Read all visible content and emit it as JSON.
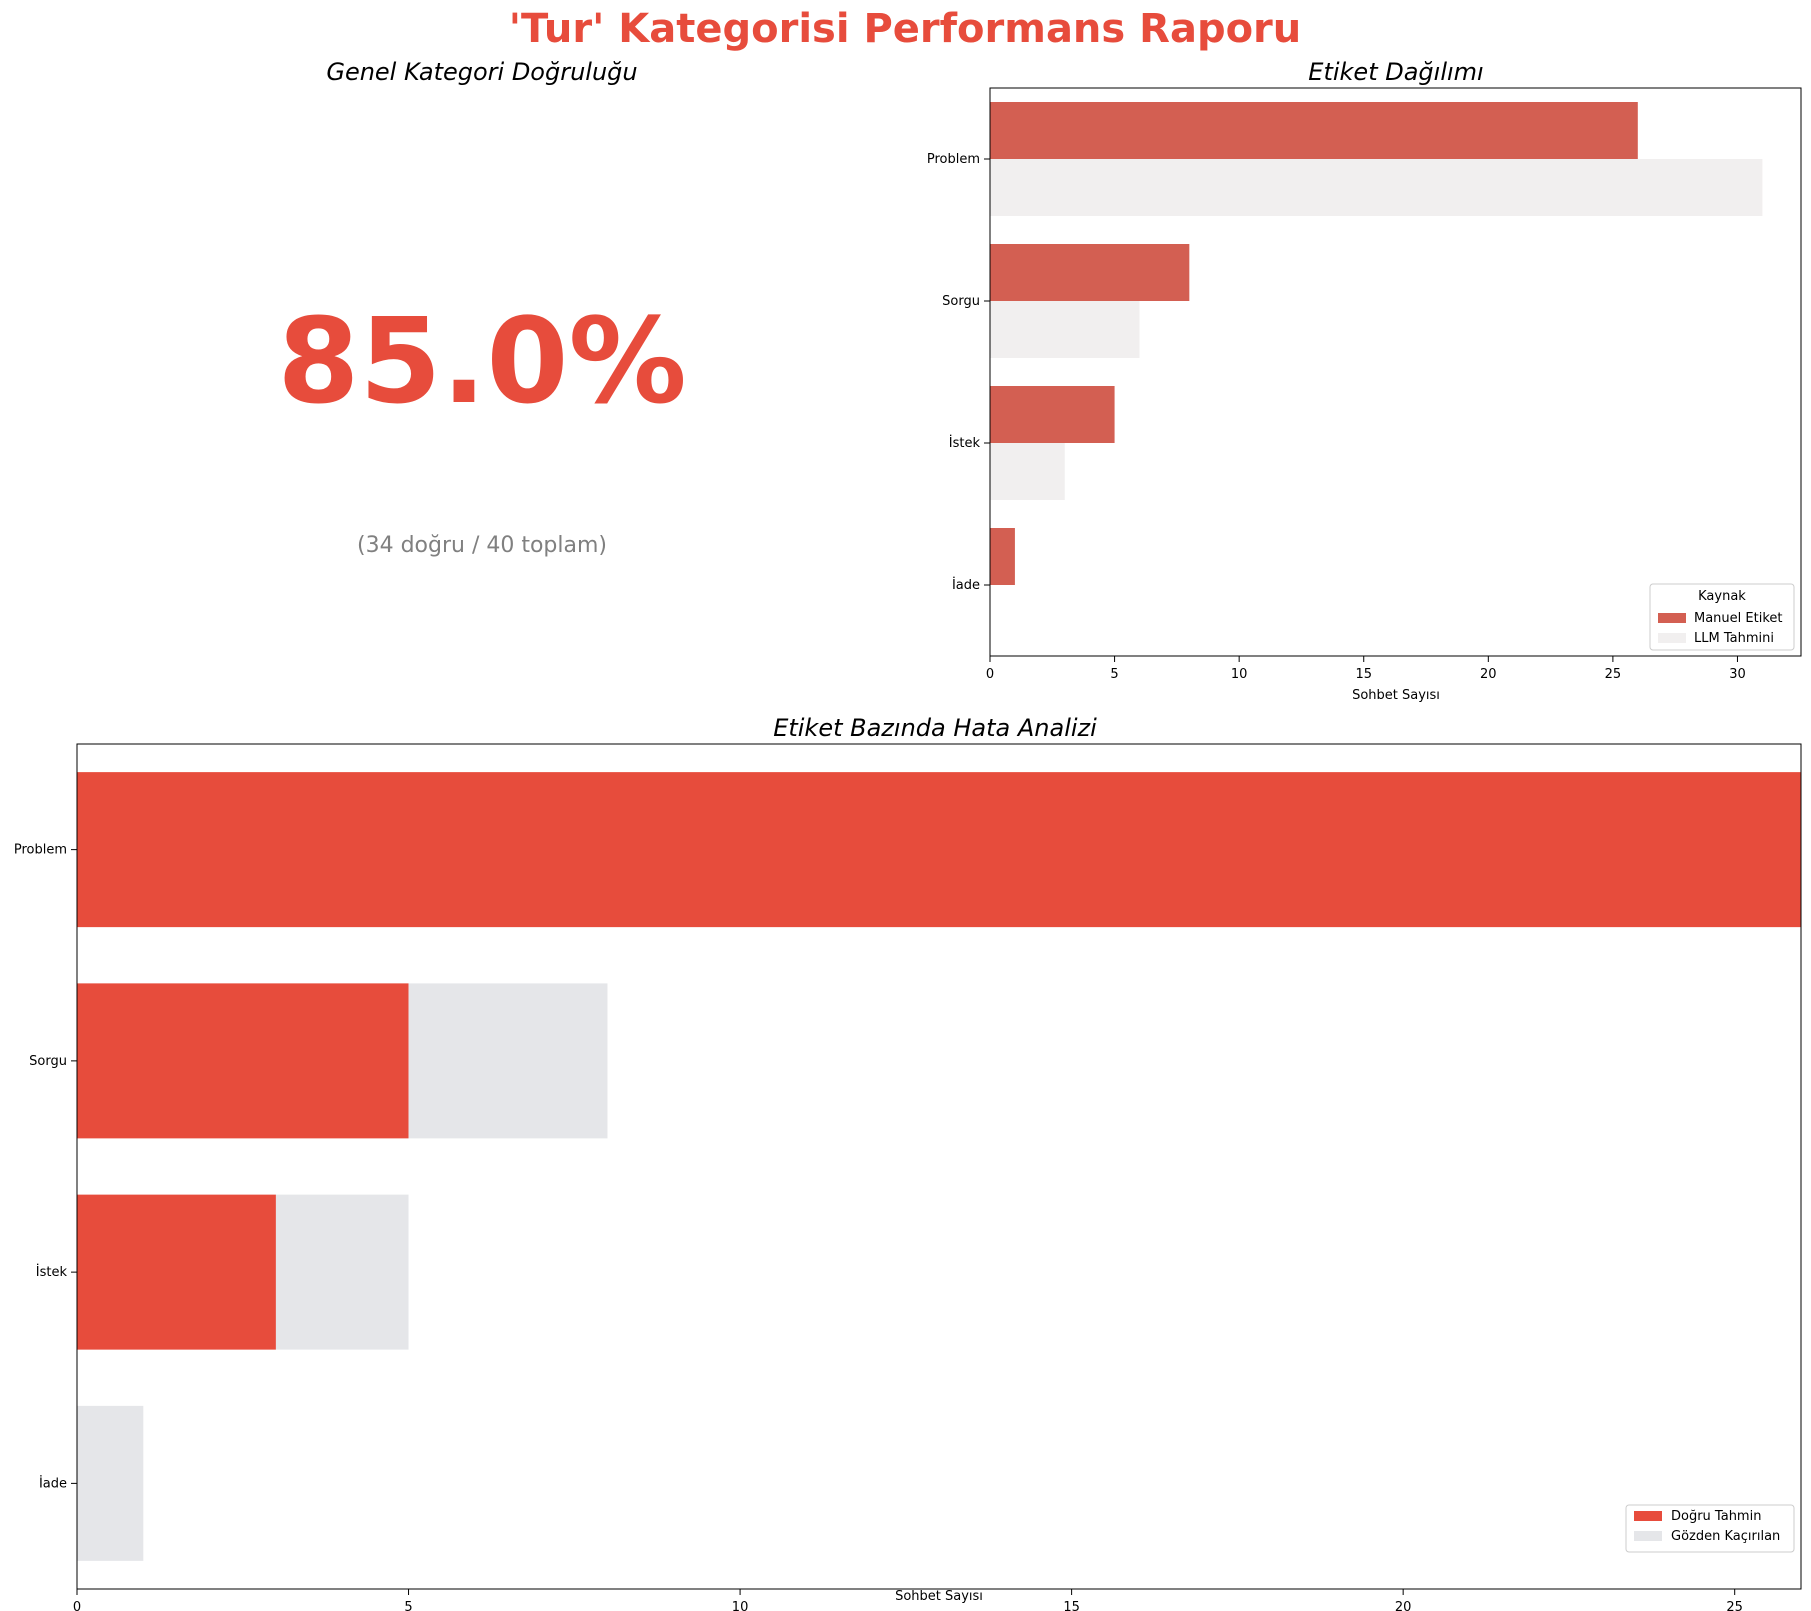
{
  "report_title": "'Tur' Kategorisi Performans Raporu",
  "accuracy_panel": {
    "title": "Genel Kategori Doğruluğu",
    "value_text": "85.0%",
    "detail_text": "(34 doğru / 40 toplam)"
  },
  "colors": {
    "title_red": "#e74c3c",
    "manual_bar": "#d35f52",
    "llm_bar": "#f1efef",
    "correct_bar": "#e74c3c",
    "missed_bar": "#e5e6e9",
    "detail_gray": "#808080"
  },
  "chart_data": [
    {
      "type": "bar",
      "orientation": "horizontal",
      "title": "Etiket Dağılımı",
      "categories": [
        "Problem",
        "Sorgu",
        "İstek",
        "İade"
      ],
      "series": [
        {
          "name": "Manuel Etiket",
          "values": [
            26,
            8,
            5,
            1
          ]
        },
        {
          "name": "LLM Tahmini",
          "values": [
            31,
            6,
            3,
            0
          ]
        }
      ],
      "xlabel": "Sohbet Sayısı",
      "ylabel": "",
      "xlim": [
        0,
        32.55
      ],
      "xticks": [
        0,
        5,
        10,
        15,
        20,
        25,
        30
      ],
      "legend": {
        "title": "Kaynak",
        "placement": "lower-right"
      },
      "grid": false
    },
    {
      "type": "bar",
      "orientation": "horizontal",
      "stacked": true,
      "title": "Etiket Bazında Hata Analizi",
      "categories": [
        "Problem",
        "Sorgu",
        "İstek",
        "İade"
      ],
      "series": [
        {
          "name": "Doğru Tahmin",
          "values": [
            26,
            5,
            3,
            0
          ]
        },
        {
          "name": "Gözden Kaçırılan",
          "values": [
            0,
            3,
            2,
            1
          ]
        }
      ],
      "xlabel": "Sohbet Sayısı",
      "ylabel": "",
      "xlim": [
        0,
        26
      ],
      "xticks": [
        0,
        5,
        10,
        15,
        20,
        25
      ],
      "legend": {
        "placement": "lower-right"
      },
      "grid": false
    }
  ]
}
